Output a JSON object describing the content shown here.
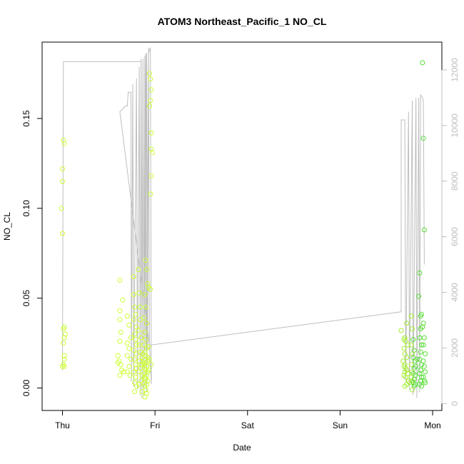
{
  "chart_data": {
    "type": "scatter",
    "title": "ATOM3 Northeast_Pacific_1 NO_CL",
    "xlabel": "Date",
    "ylabel": "NO_CL",
    "x_ticks": [
      "Thu",
      "Fri",
      "Sat",
      "Sun",
      "Mon"
    ],
    "x_range_days": [
      -0.22,
      4.1
    ],
    "ylim": [
      -0.0125,
      0.1925
    ],
    "y_ticks": [
      0.0,
      0.05,
      0.1,
      0.15
    ],
    "y2lim": [
      -250,
      13000
    ],
    "y2_ticks": [
      0,
      2000,
      4000,
      6000,
      8000,
      10000,
      12000
    ],
    "grid": false,
    "legend": "none",
    "colors": {
      "frame": "#000000",
      "secondary_axis": "#bebebe",
      "altitude_line": "#bebebe",
      "points_early": "#ccff33",
      "points_mid": "#a6ee33",
      "points_late": "#55dd33"
    },
    "series": [
      {
        "type": "scatter",
        "axis": "left",
        "points": [
          [
            0.01,
            0.138
          ],
          [
            0.02,
            0.136
          ],
          [
            0.0,
            0.122
          ],
          [
            0.0,
            0.115
          ],
          [
            -0.01,
            0.1
          ],
          [
            0.0,
            0.086
          ],
          [
            0.01,
            0.033
          ],
          [
            0.02,
            0.034
          ],
          [
            0.03,
            0.03
          ],
          [
            0.02,
            0.028
          ],
          [
            0.01,
            0.025
          ],
          [
            0.02,
            0.018
          ],
          [
            0.02,
            0.016
          ],
          [
            0.01,
            0.013
          ],
          [
            0.0,
            0.012
          ],
          [
            0.02,
            0.012
          ],
          [
            0.62,
            0.06
          ],
          [
            0.62,
            0.043
          ],
          [
            0.65,
            0.049
          ],
          [
            0.62,
            0.038
          ],
          [
            0.63,
            0.031
          ],
          [
            0.62,
            0.026
          ],
          [
            0.6,
            0.018
          ],
          [
            0.61,
            0.015
          ],
          [
            0.6,
            0.014
          ],
          [
            0.63,
            0.013
          ],
          [
            0.64,
            0.01
          ],
          [
            0.62,
            0.007
          ],
          [
            0.66,
            0.009
          ],
          [
            0.7,
            0.04
          ],
          [
            0.72,
            0.035
          ],
          [
            0.74,
            0.028
          ],
          [
            0.7,
            0.025
          ],
          [
            0.72,
            0.022
          ],
          [
            0.7,
            0.018
          ],
          [
            0.74,
            0.016
          ],
          [
            0.72,
            0.012
          ],
          [
            0.7,
            0.009
          ],
          [
            0.73,
            0.007
          ],
          [
            0.77,
            0.062
          ],
          [
            0.77,
            0.052
          ],
          [
            0.78,
            0.045
          ],
          [
            0.79,
            0.041
          ],
          [
            0.77,
            0.038
          ],
          [
            0.8,
            0.034
          ],
          [
            0.78,
            0.03
          ],
          [
            0.79,
            0.027
          ],
          [
            0.8,
            0.024
          ],
          [
            0.77,
            0.021
          ],
          [
            0.8,
            0.019
          ],
          [
            0.78,
            0.016
          ],
          [
            0.79,
            0.013
          ],
          [
            0.8,
            0.011
          ],
          [
            0.77,
            0.009
          ],
          [
            0.79,
            0.006
          ],
          [
            0.78,
            0.003
          ],
          [
            0.8,
            0.001
          ],
          [
            0.78,
            -0.002
          ],
          [
            0.82,
            0.066
          ],
          [
            0.83,
            0.053
          ],
          [
            0.84,
            0.045
          ],
          [
            0.84,
            0.038
          ],
          [
            0.82,
            0.032
          ],
          [
            0.85,
            0.028
          ],
          [
            0.83,
            0.024
          ],
          [
            0.84,
            0.02
          ],
          [
            0.86,
            0.017
          ],
          [
            0.83,
            0.015
          ],
          [
            0.85,
            0.013
          ],
          [
            0.84,
            0.011
          ],
          [
            0.82,
            0.009
          ],
          [
            0.86,
            0.007
          ],
          [
            0.85,
            0.004
          ],
          [
            0.83,
            0.002
          ],
          [
            0.86,
            -0.002
          ],
          [
            0.9,
            0.071
          ],
          [
            0.91,
            0.066
          ],
          [
            0.92,
            0.058
          ],
          [
            0.89,
            0.052
          ],
          [
            0.9,
            0.045
          ],
          [
            0.88,
            0.039
          ],
          [
            0.91,
            0.036
          ],
          [
            0.89,
            0.031
          ],
          [
            0.9,
            0.027
          ],
          [
            0.88,
            0.024
          ],
          [
            0.91,
            0.022
          ],
          [
            0.89,
            0.02
          ],
          [
            0.9,
            0.018
          ],
          [
            0.88,
            0.016
          ],
          [
            0.92,
            0.015
          ],
          [
            0.9,
            0.014
          ],
          [
            0.88,
            0.013
          ],
          [
            0.91,
            0.012
          ],
          [
            0.89,
            0.011
          ],
          [
            0.9,
            0.01
          ],
          [
            0.92,
            0.009
          ],
          [
            0.88,
            0.008
          ],
          [
            0.91,
            0.007
          ],
          [
            0.89,
            0.006
          ],
          [
            0.9,
            0.005
          ],
          [
            0.92,
            0.004
          ],
          [
            0.88,
            0.003
          ],
          [
            0.91,
            0.002
          ],
          [
            0.89,
            0.001
          ],
          [
            0.9,
            -0.001
          ],
          [
            0.91,
            -0.003
          ],
          [
            0.89,
            -0.005
          ],
          [
            0.87,
            0.019
          ],
          [
            0.92,
            0.017
          ],
          [
            0.93,
            0.023
          ],
          [
            0.87,
            0.014
          ],
          [
            0.94,
            0.175
          ],
          [
            0.95,
            0.172
          ],
          [
            0.96,
            0.166
          ],
          [
            0.95,
            0.16
          ],
          [
            0.94,
            0.157
          ],
          [
            0.96,
            0.142
          ],
          [
            0.96,
            0.133
          ],
          [
            0.97,
            0.131
          ],
          [
            0.96,
            0.118
          ],
          [
            0.95,
            0.108
          ],
          [
            0.93,
            0.056
          ],
          [
            0.95,
            0.055
          ],
          [
            0.94,
            0.016
          ],
          [
            0.96,
            0.013
          ],
          [
            0.93,
            0.01
          ],
          [
            3.66,
            0.032
          ],
          [
            3.72,
            0.036
          ],
          [
            3.7,
            0.028
          ],
          [
            3.69,
            0.027
          ],
          [
            3.71,
            0.026
          ],
          [
            3.73,
            0.024
          ],
          [
            3.69,
            0.022
          ],
          [
            3.7,
            0.019
          ],
          [
            3.72,
            0.017
          ],
          [
            3.68,
            0.015
          ],
          [
            3.7,
            0.013
          ],
          [
            3.69,
            0.012
          ],
          [
            3.71,
            0.011
          ],
          [
            3.72,
            0.01
          ],
          [
            3.7,
            0.009
          ],
          [
            3.73,
            0.008
          ],
          [
            3.69,
            0.007
          ],
          [
            3.71,
            0.006
          ],
          [
            3.74,
            0.004
          ],
          [
            3.72,
            0.002
          ],
          [
            3.7,
            0.001
          ],
          [
            3.75,
            0.003
          ],
          [
            3.77,
            0.04
          ],
          [
            3.78,
            0.033
          ],
          [
            3.79,
            0.027
          ],
          [
            3.77,
            0.024
          ],
          [
            3.8,
            0.021
          ],
          [
            3.78,
            0.019
          ],
          [
            3.79,
            0.017
          ],
          [
            3.81,
            0.015
          ],
          [
            3.77,
            0.013
          ],
          [
            3.8,
            0.011
          ],
          [
            3.78,
            0.009
          ],
          [
            3.79,
            0.008
          ],
          [
            3.81,
            0.007
          ],
          [
            3.77,
            0.006
          ],
          [
            3.8,
            0.005
          ],
          [
            3.78,
            0.004
          ],
          [
            3.79,
            0.003
          ],
          [
            3.81,
            0.002
          ],
          [
            3.8,
            0.001
          ],
          [
            3.78,
            -0.001
          ],
          [
            3.82,
            0.012
          ],
          [
            3.83,
            0.016
          ],
          [
            3.85,
            0.051
          ],
          [
            3.87,
            0.04
          ],
          [
            3.88,
            0.041
          ],
          [
            3.87,
            0.033
          ],
          [
            3.86,
            0.028
          ],
          [
            3.88,
            0.024
          ],
          [
            3.87,
            0.02
          ],
          [
            3.86,
            0.016
          ],
          [
            3.88,
            0.013
          ],
          [
            3.87,
            0.01
          ],
          [
            3.86,
            0.008
          ],
          [
            3.88,
            0.006
          ],
          [
            3.87,
            0.004
          ],
          [
            3.86,
            0.002
          ],
          [
            3.88,
            0.001
          ],
          [
            3.89,
            0.181
          ],
          [
            3.9,
            0.139
          ],
          [
            3.91,
            0.088
          ],
          [
            3.86,
            0.064
          ],
          [
            3.9,
            0.036
          ],
          [
            3.89,
            0.034
          ],
          [
            3.91,
            0.028
          ],
          [
            3.9,
            0.024
          ],
          [
            3.92,
            0.019
          ],
          [
            3.9,
            0.015
          ],
          [
            3.91,
            0.012
          ],
          [
            3.92,
            0.009
          ],
          [
            3.9,
            0.006
          ],
          [
            3.91,
            0.004
          ],
          [
            3.92,
            0.003
          ]
        ]
      },
      {
        "type": "line",
        "axis": "right",
        "points": [
          [
            0.0,
            1200
          ],
          [
            0.01,
            12300
          ],
          [
            0.85,
            12300
          ],
          [
            0.86,
            1500
          ],
          [
            0.87,
            12400
          ],
          [
            0.88,
            1700
          ],
          [
            0.89,
            12500
          ],
          [
            0.9,
            1900
          ],
          [
            0.91,
            12600
          ],
          [
            0.92,
            2000
          ],
          [
            0.93,
            12800
          ],
          [
            0.94,
            2100
          ],
          [
            0.62,
            10500
          ],
          [
            0.65,
            10600
          ],
          [
            0.68,
            10700
          ],
          [
            0.7,
            10700
          ],
          [
            0.71,
            11200
          ],
          [
            0.74,
            11200
          ],
          [
            0.745,
            800
          ],
          [
            0.76,
            11500
          ],
          [
            0.77,
            600
          ],
          [
            0.8,
            11700
          ],
          [
            0.81,
            500
          ],
          [
            0.83,
            12100
          ],
          [
            0.84,
            300
          ],
          [
            0.85,
            12400
          ],
          [
            0.86,
            200
          ],
          [
            0.87,
            12400
          ],
          [
            0.88,
            300
          ],
          [
            0.9,
            12600
          ],
          [
            0.91,
            400
          ],
          [
            0.93,
            12600
          ],
          [
            0.95,
            12800
          ],
          [
            0.96,
            700
          ],
          [
            0.94,
            2100
          ],
          [
            3.66,
            3300
          ],
          [
            3.66,
            10200
          ],
          [
            3.7,
            10200
          ],
          [
            3.71,
            800
          ],
          [
            3.74,
            10500
          ],
          [
            3.75,
            500
          ],
          [
            3.78,
            10900
          ],
          [
            3.79,
            300
          ],
          [
            3.82,
            11000
          ],
          [
            3.83,
            200
          ],
          [
            3.85,
            11000
          ],
          [
            3.86,
            400
          ],
          [
            3.87,
            11100
          ],
          [
            3.89,
            11000
          ],
          [
            3.9,
            10900
          ],
          [
            3.91,
            5000
          ]
        ]
      }
    ]
  }
}
